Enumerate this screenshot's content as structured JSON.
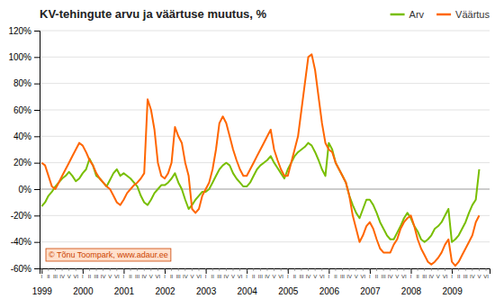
{
  "chart_data": {
    "type": "line",
    "title": "KV-tehingute arvu ja väärtuse muutus, %",
    "x": [
      1999,
      1999.0833333333333,
      1999.1666666666667,
      1999.25,
      1999.3333333333333,
      1999.4166666666667,
      1999.5,
      1999.5833333333333,
      1999.6666666666667,
      1999.75,
      1999.8333333333333,
      1999.9166666666667,
      2000,
      2000.0833333333333,
      2000.1666666666667,
      2000.25,
      2000.3333333333333,
      2000.4166666666667,
      2000.5,
      2000.5833333333333,
      2000.6666666666667,
      2000.75,
      2000.8333333333333,
      2000.9166666666667,
      2001,
      2001.0833333333333,
      2001.1666666666667,
      2001.25,
      2001.3333333333333,
      2001.4166666666667,
      2001.5,
      2001.5833333333333,
      2001.6666666666667,
      2001.75,
      2001.8333333333333,
      2001.9166666666667,
      2002,
      2002.0833333333333,
      2002.1666666666667,
      2002.25,
      2002.3333333333333,
      2002.4166666666667,
      2002.5,
      2002.5833333333333,
      2002.6666666666667,
      2002.75,
      2002.8333333333333,
      2002.9166666666667,
      2003,
      2003.0833333333333,
      2003.1666666666667,
      2003.25,
      2003.3333333333333,
      2003.4166666666667,
      2003.5,
      2003.5833333333333,
      2003.6666666666667,
      2003.75,
      2003.8333333333333,
      2003.9166666666667,
      2004,
      2004.0833333333333,
      2004.1666666666667,
      2004.25,
      2004.3333333333333,
      2004.4166666666667,
      2004.5,
      2004.5833333333333,
      2004.6666666666667,
      2004.75,
      2004.8333333333333,
      2004.9166666666667,
      2005,
      2005.0833333333333,
      2005.1666666666667,
      2005.25,
      2005.3333333333333,
      2005.4166666666667,
      2005.5,
      2005.5833333333333,
      2005.6666666666667,
      2005.75,
      2005.8333333333333,
      2005.9166666666667,
      2006,
      2006.0833333333333,
      2006.1666666666667,
      2006.25,
      2006.3333333333333,
      2006.4166666666667,
      2006.5,
      2006.5833333333333,
      2006.6666666666667,
      2006.75,
      2006.8333333333333,
      2006.9166666666667,
      2007,
      2007.0833333333333,
      2007.1666666666667,
      2007.25,
      2007.3333333333333,
      2007.4166666666667,
      2007.5,
      2007.5833333333333,
      2007.6666666666667,
      2007.75,
      2007.8333333333333,
      2007.9166666666667,
      2008,
      2008.0833333333333,
      2008.1666666666667,
      2008.25,
      2008.3333333333333,
      2008.4166666666667,
      2008.5,
      2008.5833333333333,
      2008.6666666666667,
      2008.75,
      2008.8333333333333,
      2008.9166666666667,
      2009,
      2009.0833333333333,
      2009.1666666666667,
      2009.25,
      2009.3333333333333,
      2009.4166666666667,
      2009.5,
      2009.5833333333333,
      2009.6666666666667
    ],
    "series": [
      {
        "name": "Arv",
        "color": "#78be00",
        "values": [
          -13,
          -10,
          -5,
          -2,
          2,
          5,
          8,
          10,
          13,
          10,
          6,
          8,
          12,
          15,
          23,
          18,
          10,
          8,
          5,
          2,
          7,
          12,
          15,
          10,
          12,
          10,
          8,
          5,
          2,
          -5,
          -10,
          -12,
          -8,
          -3,
          0,
          3,
          3,
          5,
          8,
          12,
          5,
          0,
          -8,
          -15,
          -12,
          -8,
          -5,
          -2,
          -2,
          0,
          5,
          10,
          15,
          18,
          20,
          18,
          12,
          8,
          5,
          2,
          2,
          5,
          10,
          15,
          18,
          20,
          22,
          25,
          20,
          16,
          12,
          8,
          15,
          20,
          25,
          28,
          30,
          32,
          35,
          33,
          28,
          22,
          15,
          10,
          35,
          30,
          20,
          15,
          10,
          5,
          -5,
          -12,
          -18,
          -22,
          -15,
          -8,
          -8,
          -12,
          -18,
          -25,
          -30,
          -35,
          -38,
          -38,
          -33,
          -28,
          -22,
          -18,
          -22,
          -28,
          -32,
          -38,
          -40,
          -38,
          -35,
          -30,
          -28,
          -25,
          -20,
          -15,
          -40,
          -38,
          -35,
          -30,
          -25,
          -18,
          -12,
          -8,
          15
        ]
      },
      {
        "name": "Väärtus",
        "color": "#ff6600",
        "values": [
          20,
          18,
          10,
          2,
          0,
          5,
          10,
          15,
          20,
          25,
          30,
          35,
          33,
          28,
          22,
          18,
          12,
          8,
          5,
          2,
          0,
          -5,
          -10,
          -12,
          -8,
          -3,
          0,
          3,
          5,
          8,
          12,
          68,
          60,
          45,
          20,
          10,
          8,
          12,
          20,
          47,
          40,
          35,
          20,
          10,
          -15,
          -18,
          -15,
          -5,
          0,
          5,
          15,
          30,
          50,
          55,
          50,
          40,
          30,
          22,
          15,
          10,
          10,
          15,
          20,
          25,
          30,
          35,
          40,
          45,
          30,
          22,
          15,
          10,
          10,
          20,
          30,
          40,
          60,
          80,
          100,
          102,
          90,
          70,
          50,
          35,
          30,
          28,
          20,
          15,
          10,
          5,
          -5,
          -20,
          -30,
          -40,
          -35,
          -28,
          -25,
          -30,
          -38,
          -45,
          -48,
          -48,
          -48,
          -42,
          -38,
          -30,
          -25,
          -22,
          -20,
          -28,
          -38,
          -45,
          -50,
          -55,
          -57,
          -55,
          -52,
          -48,
          -42,
          -38,
          -55,
          -58,
          -55,
          -50,
          -45,
          -40,
          -35,
          -25,
          -20
        ]
      }
    ],
    "xlim": [
      1998.95,
      2009.92
    ],
    "xticks": [
      1999,
      2000,
      2001,
      2002,
      2003,
      2004,
      2005,
      2006,
      2007,
      2008,
      2009
    ],
    "ylim": [
      -60,
      120
    ],
    "yticks": [
      {
        "value": -60,
        "label": "-60%"
      },
      {
        "value": -40,
        "label": "-40%"
      },
      {
        "value": -20,
        "label": "-20%"
      },
      {
        "value": 0,
        "label": "0%"
      },
      {
        "value": 20,
        "label": "20%"
      },
      {
        "value": 40,
        "label": "40%"
      },
      {
        "value": 60,
        "label": "60%"
      },
      {
        "value": 80,
        "label": "80%"
      },
      {
        "value": 100,
        "label": "100%"
      },
      {
        "value": 120,
        "label": "120%"
      }
    ],
    "annotations": [
      {
        "text": "I",
        "x": 1999
      },
      {
        "text": "II",
        "x": 1999.1666666666667
      },
      {
        "text": "III",
        "x": 1999.3333333333333
      },
      {
        "text": "IV",
        "x": 1999.5
      },
      {
        "text": "V",
        "x": 1999.6666666666667
      },
      {
        "text": "VI",
        "x": 1999.8333333333333
      },
      {
        "text": "I",
        "x": 2000
      },
      {
        "text": "II",
        "x": 2000.1666666666667
      },
      {
        "text": "III",
        "x": 2000.3333333333333
      },
      {
        "text": "IV",
        "x": 2000.5
      },
      {
        "text": "V",
        "x": 2000.6666666666667
      },
      {
        "text": "VI",
        "x": 2000.8333333333333
      },
      {
        "text": "I",
        "x": 2001
      },
      {
        "text": "II",
        "x": 2001.1666666666667
      },
      {
        "text": "III",
        "x": 2001.3333333333333
      },
      {
        "text": "IV",
        "x": 2001.5
      },
      {
        "text": "V",
        "x": 2001.6666666666667
      },
      {
        "text": "VI",
        "x": 2001.8333333333333
      },
      {
        "text": "I",
        "x": 2002
      },
      {
        "text": "II",
        "x": 2002.1666666666667
      },
      {
        "text": "III",
        "x": 2002.3333333333333
      },
      {
        "text": "IV",
        "x": 2002.5
      },
      {
        "text": "V",
        "x": 2002.6666666666667
      },
      {
        "text": "VI",
        "x": 2002.8333333333333
      },
      {
        "text": "I",
        "x": 2003
      },
      {
        "text": "II",
        "x": 2003.1666666666667
      },
      {
        "text": "III",
        "x": 2003.3333333333333
      },
      {
        "text": "IV",
        "x": 2003.5
      },
      {
        "text": "V",
        "x": 2003.6666666666667
      },
      {
        "text": "VI",
        "x": 2003.8333333333333
      },
      {
        "text": "I",
        "x": 2004
      },
      {
        "text": "II",
        "x": 2004.1666666666667
      },
      {
        "text": "III",
        "x": 2004.3333333333333
      },
      {
        "text": "IV",
        "x": 2004.5
      },
      {
        "text": "V",
        "x": 2004.6666666666667
      },
      {
        "text": "VI",
        "x": 2004.8333333333333
      },
      {
        "text": "I",
        "x": 2005
      },
      {
        "text": "II",
        "x": 2005.1666666666667
      },
      {
        "text": "III",
        "x": 2005.3333333333333
      },
      {
        "text": "IV",
        "x": 2005.5
      },
      {
        "text": "V",
        "x": 2005.6666666666667
      },
      {
        "text": "VI",
        "x": 2005.8333333333333
      },
      {
        "text": "I",
        "x": 2006
      },
      {
        "text": "II",
        "x": 2006.1666666666667
      },
      {
        "text": "III",
        "x": 2006.3333333333333
      },
      {
        "text": "IV",
        "x": 2006.5
      },
      {
        "text": "V",
        "x": 2006.6666666666667
      },
      {
        "text": "VI",
        "x": 2006.8333333333333
      },
      {
        "text": "I",
        "x": 2007
      },
      {
        "text": "II",
        "x": 2007.1666666666667
      },
      {
        "text": "III",
        "x": 2007.3333333333333
      },
      {
        "text": "IV",
        "x": 2007.5
      },
      {
        "text": "V",
        "x": 2007.6666666666667
      },
      {
        "text": "VI",
        "x": 2007.8333333333333
      },
      {
        "text": "I",
        "x": 2008
      },
      {
        "text": "II",
        "x": 2008.1666666666667
      },
      {
        "text": "III",
        "x": 2008.3333333333333
      },
      {
        "text": "IV",
        "x": 2008.5
      },
      {
        "text": "V",
        "x": 2008.6666666666667
      },
      {
        "text": "VI",
        "x": 2008.8333333333333
      },
      {
        "text": "I",
        "x": 2009
      },
      {
        "text": "II",
        "x": 2009.1666666666667
      },
      {
        "text": "III",
        "x": 2009.3333333333333
      },
      {
        "text": "IV",
        "x": 2009.5
      },
      {
        "text": "V",
        "x": 2009.6666666666667
      },
      {
        "text": "VI",
        "x": 2009.8333333333333
      }
    ],
    "watermark": "© Tõnu Toompark, www.adaur.ee",
    "grid": true,
    "legend": "top"
  }
}
